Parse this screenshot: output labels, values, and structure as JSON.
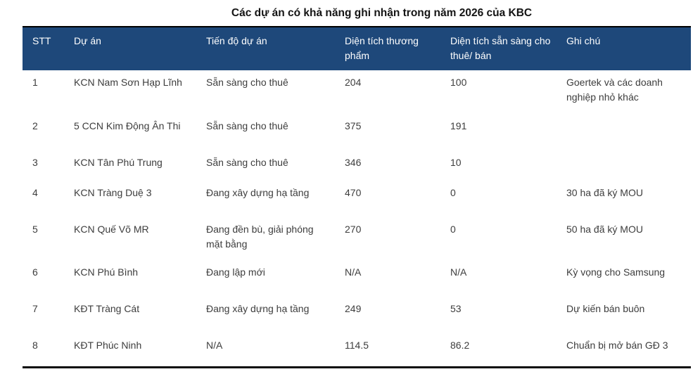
{
  "title": "Các dự án có khả năng ghi nhận trong năm 2026 của KBC",
  "colors": {
    "header_bg": "#1E487A",
    "header_text": "#FFFFFF",
    "body_text": "#3D3D3D",
    "border": "#000000"
  },
  "table": {
    "columns": [
      "STT",
      "Dự án",
      "Tiến độ dự án",
      "Diện tích thương phẩm",
      "Diện tích sẵn sàng cho thuê/ bán",
      "Ghi chú"
    ],
    "rows": [
      {
        "stt": "1",
        "project": "KCN Nam Sơn Hạp Lĩnh",
        "progress": "Sẵn sàng cho thuê",
        "commercial_area": "204",
        "ready_area": "100",
        "note": "Goertek và các doanh nghiệp nhỏ khác"
      },
      {
        "stt": "2",
        "project": "5 CCN Kim Động Ân Thi",
        "progress": "Sẵn sàng cho thuê",
        "commercial_area": "375",
        "ready_area": "191",
        "note": ""
      },
      {
        "stt": "3",
        "project": "KCN Tân Phú Trung",
        "progress": "Sẵn sàng cho thuê",
        "commercial_area": "346",
        "ready_area": "10",
        "note": ""
      },
      {
        "stt": "4",
        "project": "KCN Tràng Duệ 3",
        "progress": "Đang xây dựng hạ tầng",
        "commercial_area": "470",
        "ready_area": "0",
        "note": "30 ha đã ký MOU"
      },
      {
        "stt": "5",
        "project": "KCN Quế Võ MR",
        "progress": "Đang đền bù, giải phóng mặt bằng",
        "commercial_area": "270",
        "ready_area": "0",
        "note": "50 ha đã ký MOU"
      },
      {
        "stt": "6",
        "project": "KCN Phú Bình",
        "progress": "Đang lập mới",
        "commercial_area": "N/A",
        "ready_area": "N/A",
        "note": "Kỳ vọng cho Samsung"
      },
      {
        "stt": "7",
        "project": "KĐT Tràng Cát",
        "progress": "Đang xây dựng hạ tầng",
        "commercial_area": "249",
        "ready_area": "53",
        "note": "Dự kiến bán buôn"
      },
      {
        "stt": "8",
        "project": "KĐT Phúc Ninh",
        "progress": "N/A",
        "commercial_area": "114.5",
        "ready_area": "86.2",
        "note": "Chuẩn bị mở bán GĐ 3"
      }
    ]
  }
}
